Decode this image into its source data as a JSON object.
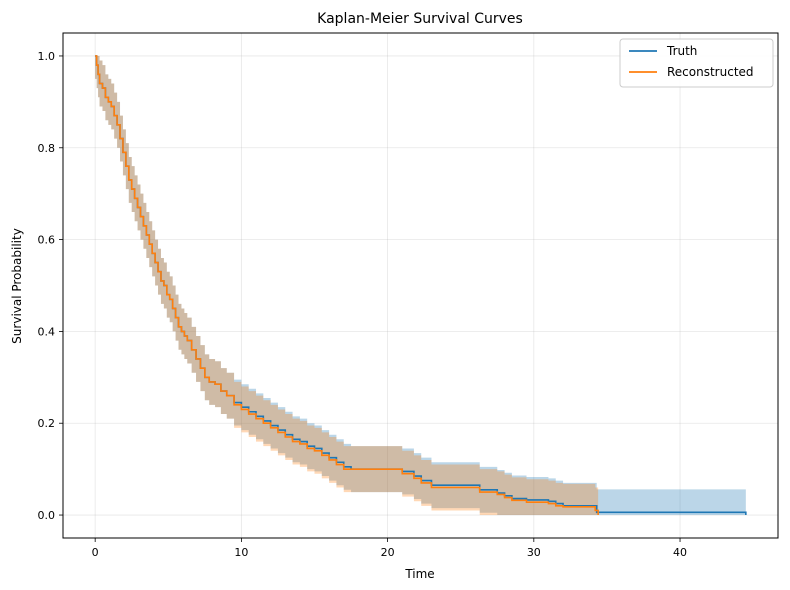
{
  "chart_data": {
    "type": "line",
    "title": "Kaplan-Meier Survival Curves",
    "xlabel": "Time",
    "ylabel": "Survival Probability",
    "xlim": [
      -2.2,
      46.7
    ],
    "ylim": [
      -0.05,
      1.05
    ],
    "xticks": [
      0,
      10,
      20,
      30,
      40
    ],
    "yticks": [
      0.0,
      0.2,
      0.4,
      0.6,
      0.8,
      1.0
    ],
    "xtick_labels": [
      "0",
      "10",
      "20",
      "30",
      "40"
    ],
    "ytick_labels": [
      "0.0",
      "0.2",
      "0.4",
      "0.6",
      "0.8",
      "1.0"
    ],
    "grid": true,
    "legend_position": "top-right",
    "ci_half_width": 0.05,
    "series": [
      {
        "name": "Truth",
        "color": "#1f77b4",
        "x": [
          0,
          0.1,
          0.2,
          0.3,
          0.5,
          0.7,
          0.9,
          1.1,
          1.3,
          1.5,
          1.7,
          1.9,
          2.1,
          2.3,
          2.5,
          2.7,
          2.9,
          3.1,
          3.3,
          3.5,
          3.7,
          3.9,
          4.1,
          4.3,
          4.5,
          4.7,
          4.9,
          5.1,
          5.3,
          5.5,
          5.7,
          5.9,
          6.1,
          6.3,
          6.6,
          6.9,
          7.2,
          7.5,
          7.8,
          8.2,
          8.6,
          9.0,
          9.5,
          10.0,
          10.5,
          11.0,
          11.5,
          12.0,
          12.5,
          13.0,
          13.5,
          14.0,
          14.5,
          15.0,
          15.5,
          16.0,
          16.5,
          17.0,
          17.5,
          21.0,
          21.8,
          22.3,
          23.0,
          26.3,
          27.5,
          28.0,
          28.5,
          29.5,
          31.0,
          31.5,
          32.0,
          34.3,
          34.6,
          44.5
        ],
        "y": [
          1.0,
          0.98,
          0.96,
          0.94,
          0.93,
          0.91,
          0.9,
          0.89,
          0.87,
          0.85,
          0.82,
          0.79,
          0.76,
          0.73,
          0.71,
          0.69,
          0.67,
          0.65,
          0.63,
          0.61,
          0.59,
          0.57,
          0.55,
          0.53,
          0.51,
          0.5,
          0.48,
          0.47,
          0.45,
          0.43,
          0.41,
          0.4,
          0.39,
          0.38,
          0.36,
          0.34,
          0.32,
          0.3,
          0.29,
          0.285,
          0.27,
          0.26,
          0.245,
          0.235,
          0.225,
          0.215,
          0.205,
          0.195,
          0.185,
          0.175,
          0.165,
          0.16,
          0.15,
          0.145,
          0.135,
          0.125,
          0.115,
          0.105,
          0.1,
          0.095,
          0.085,
          0.075,
          0.065,
          0.055,
          0.048,
          0.042,
          0.036,
          0.033,
          0.03,
          0.025,
          0.02,
          0.006,
          0.006,
          0.0
        ]
      },
      {
        "name": "Reconstructed",
        "color": "#ff7f0e",
        "x": [
          0,
          0.1,
          0.2,
          0.3,
          0.5,
          0.7,
          0.9,
          1.1,
          1.3,
          1.5,
          1.7,
          1.9,
          2.1,
          2.3,
          2.5,
          2.7,
          2.9,
          3.1,
          3.3,
          3.5,
          3.7,
          3.9,
          4.1,
          4.3,
          4.5,
          4.7,
          4.9,
          5.1,
          5.3,
          5.5,
          5.7,
          5.9,
          6.1,
          6.3,
          6.6,
          6.9,
          7.2,
          7.5,
          7.8,
          8.2,
          8.6,
          9.0,
          9.5,
          10.0,
          10.5,
          11.0,
          11.5,
          12.0,
          12.5,
          13.0,
          13.5,
          14.0,
          14.5,
          15.0,
          15.5,
          16.0,
          16.5,
          17.0,
          17.5,
          21.0,
          21.8,
          22.3,
          23.0,
          26.3,
          27.5,
          28.0,
          28.5,
          29.5,
          31.0,
          31.5,
          32.0,
          34.2,
          34.4
        ],
        "y": [
          1.0,
          0.98,
          0.96,
          0.94,
          0.93,
          0.91,
          0.9,
          0.89,
          0.87,
          0.85,
          0.82,
          0.79,
          0.76,
          0.73,
          0.71,
          0.69,
          0.67,
          0.65,
          0.63,
          0.61,
          0.59,
          0.57,
          0.55,
          0.53,
          0.51,
          0.5,
          0.48,
          0.47,
          0.45,
          0.43,
          0.41,
          0.4,
          0.39,
          0.38,
          0.36,
          0.34,
          0.32,
          0.3,
          0.29,
          0.285,
          0.27,
          0.26,
          0.24,
          0.23,
          0.22,
          0.21,
          0.2,
          0.19,
          0.18,
          0.17,
          0.16,
          0.155,
          0.145,
          0.14,
          0.13,
          0.12,
          0.11,
          0.1,
          0.1,
          0.09,
          0.08,
          0.07,
          0.06,
          0.05,
          0.045,
          0.038,
          0.032,
          0.028,
          0.025,
          0.02,
          0.018,
          0.01,
          0.0
        ]
      }
    ]
  }
}
